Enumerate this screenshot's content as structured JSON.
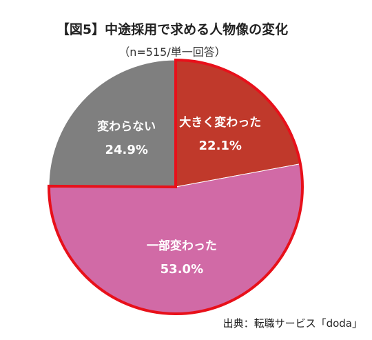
{
  "title": "【図5】中途採用で求める人物像の変化",
  "subtitle": "（n=515/単一回答）",
  "source": "出典：転職サービス「doda」",
  "chart_data": {
    "type": "pie",
    "title": "【図5】中途採用で求める人物像の変化",
    "subtitle": "（n=515/単一回答）",
    "slices": [
      {
        "label": "大きく変わった",
        "value": 22.1,
        "value_label": "22.1%",
        "color": "#c0392b",
        "highlighted": true
      },
      {
        "label": "一部変わった",
        "value": 53.0,
        "value_label": "53.0%",
        "color": "#d16aa6",
        "highlighted": true
      },
      {
        "label": "変わらない",
        "value": 24.9,
        "value_label": "24.9%",
        "color": "#7f7f7f",
        "highlighted": false
      }
    ],
    "start_angle_deg": 0,
    "direction": "clockwise",
    "highlight_outline_color": "#e8101a",
    "legend": "none",
    "source": "出典：転職サービス「doda」"
  }
}
